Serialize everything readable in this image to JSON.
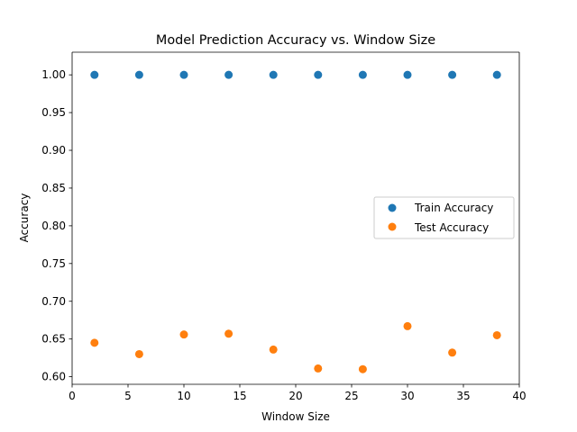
{
  "chart_data": {
    "type": "scatter",
    "title": "Model Prediction Accuracy vs. Window Size",
    "xlabel": "Window Size",
    "ylabel": "Accuracy",
    "xlim": [
      0,
      40
    ],
    "ylim": [
      0.59,
      1.03
    ],
    "xticks": [
      "0",
      "5",
      "10",
      "15",
      "20",
      "25",
      "30",
      "35",
      "40"
    ],
    "yticks": [
      "0.60",
      "0.65",
      "0.70",
      "0.75",
      "0.80",
      "0.85",
      "0.90",
      "0.95",
      "1.00"
    ],
    "grid": false,
    "legend_position": "center-right",
    "x": [
      2,
      6,
      10,
      14,
      18,
      22,
      26,
      30,
      34,
      38
    ],
    "series": [
      {
        "name": "Train Accuracy",
        "color": "#1f77b4",
        "values": [
          1.0,
          1.0,
          1.0,
          1.0,
          1.0,
          1.0,
          1.0,
          1.0,
          1.0,
          1.0
        ]
      },
      {
        "name": "Test Accuracy",
        "color": "#ff7f0e",
        "values": [
          0.645,
          0.63,
          0.656,
          0.657,
          0.636,
          0.611,
          0.61,
          0.667,
          0.632,
          0.655
        ]
      }
    ]
  }
}
